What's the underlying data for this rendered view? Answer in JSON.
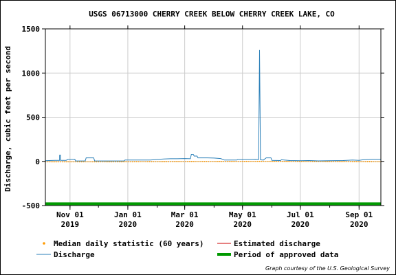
{
  "chart_data": {
    "type": "line",
    "title": "USGS 06713000 CHERRY CREEK BELOW CHERRY CREEK LAKE, CO",
    "xlabel": "",
    "ylabel": "Discharge, cubic feet per second",
    "xlim": [
      "2019-10-06",
      "2020-09-24"
    ],
    "ylim": [
      -500,
      1500
    ],
    "yticks": [
      {
        "value": -500,
        "label": "-500"
      },
      {
        "value": 0,
        "label": "0"
      },
      {
        "value": 500,
        "label": "500"
      },
      {
        "value": 1000,
        "label": "1000"
      },
      {
        "value": 1500,
        "label": "1500"
      }
    ],
    "xticks": [
      {
        "date": "2019-11-01",
        "month": "Nov 01",
        "year": "2019"
      },
      {
        "date": "2020-01-01",
        "month": "Jan 01",
        "year": "2020"
      },
      {
        "date": "2020-03-01",
        "month": "Mar 01",
        "year": "2020"
      },
      {
        "date": "2020-05-01",
        "month": "May 01",
        "year": "2020"
      },
      {
        "date": "2020-07-01",
        "month": "Jul 01",
        "year": "2020"
      },
      {
        "date": "2020-09-01",
        "month": "Sep 01",
        "year": "2020"
      }
    ],
    "grid": true,
    "colors": {
      "discharge": "#2a7fb8",
      "median": "#ff9900",
      "estimated": "#cc0000",
      "approved": "#009900",
      "grid": "#cccccc"
    },
    "series": [
      {
        "name": "Discharge",
        "points": [
          [
            "2019-10-06",
            8
          ],
          [
            "2019-10-10",
            10
          ],
          [
            "2019-10-16",
            12
          ],
          [
            "2019-10-21",
            12
          ],
          [
            "2019-10-21",
            70
          ],
          [
            "2019-10-22",
            70
          ],
          [
            "2019-10-22",
            12
          ],
          [
            "2019-10-28",
            12
          ],
          [
            "2019-10-30",
            25
          ],
          [
            "2019-11-06",
            25
          ],
          [
            "2019-11-07",
            5
          ],
          [
            "2019-11-17",
            5
          ],
          [
            "2019-11-18",
            40
          ],
          [
            "2019-11-26",
            40
          ],
          [
            "2019-11-27",
            5
          ],
          [
            "2019-12-28",
            5
          ],
          [
            "2019-12-29",
            15
          ],
          [
            "2020-01-25",
            15
          ],
          [
            "2020-02-01",
            22
          ],
          [
            "2020-02-08",
            28
          ],
          [
            "2020-02-15",
            30
          ],
          [
            "2020-02-22",
            30
          ],
          [
            "2020-03-01",
            32
          ],
          [
            "2020-03-07",
            30
          ],
          [
            "2020-03-08",
            80
          ],
          [
            "2020-03-10",
            80
          ],
          [
            "2020-03-11",
            60
          ],
          [
            "2020-03-14",
            60
          ],
          [
            "2020-03-15",
            40
          ],
          [
            "2020-03-25",
            40
          ],
          [
            "2020-04-01",
            38
          ],
          [
            "2020-04-08",
            32
          ],
          [
            "2020-04-12",
            15
          ],
          [
            "2020-04-25",
            15
          ],
          [
            "2020-04-26",
            22
          ],
          [
            "2020-05-01",
            22
          ],
          [
            "2020-05-08",
            24
          ],
          [
            "2020-05-15",
            25
          ],
          [
            "2020-05-18",
            22
          ],
          [
            "2020-05-19",
            1260
          ],
          [
            "2020-05-20",
            18
          ],
          [
            "2020-05-23",
            15
          ],
          [
            "2020-05-26",
            40
          ],
          [
            "2020-05-31",
            40
          ],
          [
            "2020-06-01",
            12
          ],
          [
            "2020-06-10",
            10
          ],
          [
            "2020-06-11",
            18
          ],
          [
            "2020-06-20",
            10
          ],
          [
            "2020-07-01",
            8
          ],
          [
            "2020-07-10",
            10
          ],
          [
            "2020-07-20",
            6
          ],
          [
            "2020-08-01",
            8
          ],
          [
            "2020-08-15",
            10
          ],
          [
            "2020-08-25",
            15
          ],
          [
            "2020-09-01",
            12
          ],
          [
            "2020-09-05",
            18
          ],
          [
            "2020-09-10",
            22
          ],
          [
            "2020-09-15",
            25
          ],
          [
            "2020-09-20",
            25
          ],
          [
            "2020-09-24",
            25
          ]
        ]
      },
      {
        "name": "Median daily statistic (60 years)",
        "points": [
          [
            "2019-10-06",
            3
          ],
          [
            "2019-12-01",
            3
          ],
          [
            "2020-02-01",
            4
          ],
          [
            "2020-04-01",
            6
          ],
          [
            "2020-06-01",
            8
          ],
          [
            "2020-08-01",
            5
          ],
          [
            "2020-09-24",
            4
          ]
        ]
      }
    ],
    "approved_period": {
      "name": "Period of approved data",
      "start": "2019-10-06",
      "end": "2020-09-24",
      "value": -480
    },
    "legend": {
      "position": "bottom",
      "items": [
        {
          "key": "median",
          "label": "Median daily statistic (60 years)"
        },
        {
          "key": "estimated",
          "label": "Estimated discharge"
        },
        {
          "key": "discharge",
          "label": "Discharge"
        },
        {
          "key": "approved",
          "label": "Period of approved data"
        }
      ]
    },
    "credit": "Graph courtesy of the U.S. Geological Survey"
  }
}
